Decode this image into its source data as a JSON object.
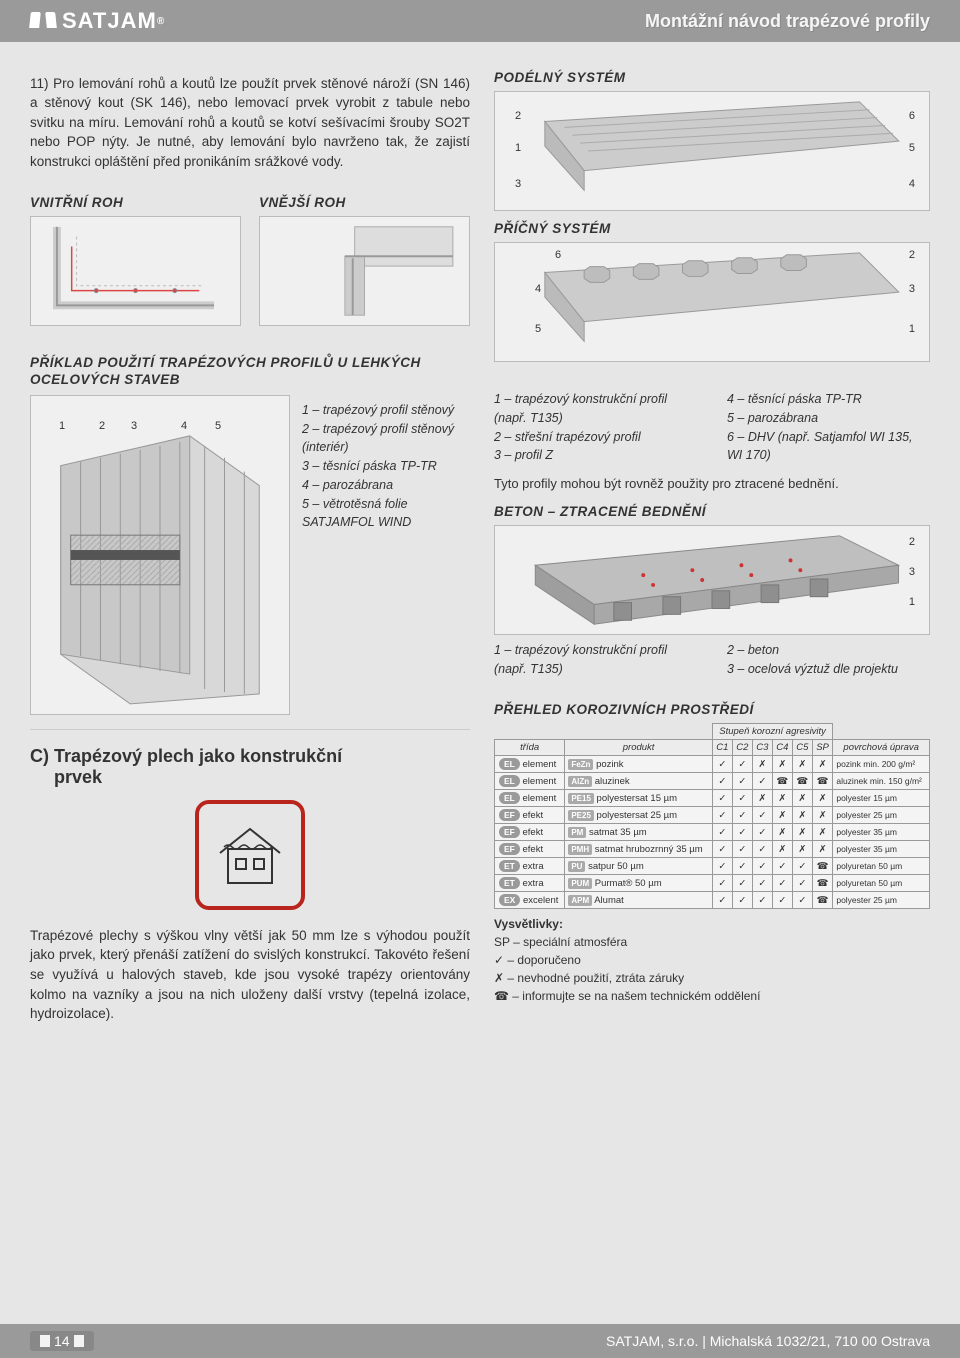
{
  "brand": "SATJAM",
  "brand_reg": "®",
  "header_title": "Montážní návod trapézové profily",
  "para_11": "11) Pro lemování rohů a koutů lze použít prvek stěnové nároží (SN 146) a stěnový kout (SK 146), nebo lemovací prvek vyrobit z tabule nebo svitku na míru. Lemování rohů a koutů se kotví sešívacími šrouby SO2T nebo POP nýty. Je nutné, aby lemování bylo navrženo tak, že zajistí konstrukci opláštění před pronikáním srážkové vody.",
  "titles": {
    "vnitrni": "VNITŘNÍ ROH",
    "vnejsi": "VNĚJŠÍ ROH",
    "podelny": "PODÉLNÝ SYSTÉM",
    "pricny": "PŘÍČNÝ SYSTÉM",
    "priklad": "PŘÍKLAD POUŽITÍ TRAPÉZOVÝCH PROFILŮ U LEHKÝCH OCELOVÝCH STAVEB",
    "beton": "BETON – ZTRACENÉ BEDNĚNÍ",
    "prehled": "PŘEHLED KOROZIVNÍCH PROSTŘEDÍ",
    "stupen": "Stupeň korozní agresivity"
  },
  "legend_left": {
    "l1": "1 – trapézový profil stěnový",
    "l2": "2 – trapézový profil stěnový (interiér)",
    "l3": "3 – těsnící páska TP-TR",
    "l4": "4 – parozábrana",
    "l5": "5 – větrotěsná folie SATJAMFOL WIND"
  },
  "legend_sys": {
    "l1": "1 – trapézový konstrukční profil (např. T135)",
    "l2": "2 – střešní trapézový profil",
    "l3": "3 – profil Z",
    "r4": "4 – těsnící páska TP-TR",
    "r5": "5 – parozábrana",
    "r6": "6 – DHV (např. Satjamfol WI 135, WI 170)"
  },
  "sys_note": "Tyto profily mohou být rovněž použity pro ztracené bednění.",
  "legend_beton": {
    "l1": "1 – trapézový konstrukční profil (např. T135)",
    "r2": "2 – beton",
    "r3": "3 – ocelová výztuž dle projektu"
  },
  "section_c": {
    "head": "C) Trapézový plech jako konstrukční",
    "head2": "prvek",
    "text": "Trapézové plechy s výškou vlny větší jak 50 mm lze s výhodou použít jako prvek, který přenáší zatížení do svislých konstrukcí. Takovéto řešení se využívá u halových staveb, kde jsou vysoké trapézy orientovány kolmo na vazníky a jsou na nich uloženy další vrstvy (tepelná izolace, hydroizolace)."
  },
  "table": {
    "h_trida": "třída",
    "h_produkt": "produkt",
    "h_c1": "C1",
    "h_c2": "C2",
    "h_c3": "C3",
    "h_c4": "C4",
    "h_c5": "C5",
    "h_sp": "SP",
    "h_uprava": "povrchová úprava",
    "rows": [
      {
        "b": "EL",
        "bl": "element",
        "pb": "FeZn",
        "pd": "pozink",
        "m": [
          "✓",
          "✓",
          "✗",
          "✗",
          "✗",
          "✗"
        ],
        "n": "pozink min. 200 g/m²"
      },
      {
        "b": "EL",
        "bl": "element",
        "pb": "AlZn",
        "pd": "aluzinek",
        "m": [
          "✓",
          "✓",
          "✓",
          "☎",
          "☎",
          "☎"
        ],
        "n": "aluzinek min. 150 g/m²"
      },
      {
        "b": "EL",
        "bl": "element",
        "pb": "PE15",
        "pd": "polyestersat 15 µm",
        "m": [
          "✓",
          "✓",
          "✗",
          "✗",
          "✗",
          "✗"
        ],
        "n": "polyester 15 µm"
      },
      {
        "b": "EF",
        "bl": "efekt",
        "pb": "PE25",
        "pd": "polyestersat 25 µm",
        "m": [
          "✓",
          "✓",
          "✓",
          "✗",
          "✗",
          "✗"
        ],
        "n": "polyester 25 µm"
      },
      {
        "b": "EF",
        "bl": "efekt",
        "pb": "PM",
        "pd": "satmat 35 µm",
        "m": [
          "✓",
          "✓",
          "✓",
          "✗",
          "✗",
          "✗"
        ],
        "n": "polyester 35 µm"
      },
      {
        "b": "EF",
        "bl": "efekt",
        "pb": "PMH",
        "pd": "satmat hrubozrnný 35 µm",
        "m": [
          "✓",
          "✓",
          "✓",
          "✗",
          "✗",
          "✗"
        ],
        "n": "polyester 35 µm"
      },
      {
        "b": "ET",
        "bl": "extra",
        "pb": "PU",
        "pd": "satpur 50 µm",
        "m": [
          "✓",
          "✓",
          "✓",
          "✓",
          "✓",
          "☎"
        ],
        "n": "polyuretan 50 µm"
      },
      {
        "b": "ET",
        "bl": "extra",
        "pb": "PUM",
        "pd": "Purmat® 50 µm",
        "m": [
          "✓",
          "✓",
          "✓",
          "✓",
          "✓",
          "☎"
        ],
        "n": "polyuretan 50 µm"
      },
      {
        "b": "EX",
        "bl": "excelent",
        "pb": "APM",
        "pd": "Alumat",
        "m": [
          "✓",
          "✓",
          "✓",
          "✓",
          "✓",
          "☎"
        ],
        "n": "polyester 25 µm"
      }
    ]
  },
  "vysv": {
    "title": "Vysvětlivky:",
    "sp": "SP – speciální atmosféra",
    "ok": "✓   – doporučeno",
    "no": "✗   – nevhodné použití, ztráta záruky",
    "tel": "☎   – informujte se na našem technickém oddělení"
  },
  "footer": {
    "page": "14",
    "company": "SATJAM, s.r.o.",
    "addr": "Michalská 1032/21, 710 00 Ostrava",
    "sep": " | "
  },
  "diag_labels": {
    "podelny": {
      "tl": "2",
      "ml": "1",
      "bl": "3",
      "tr": "6",
      "mr": "5",
      "br": "4"
    },
    "pricny": {
      "tl": "6",
      "ml": "4",
      "bl": "5",
      "tr": "2",
      "mr": "3",
      "br": "1"
    },
    "beton": {
      "tr": "2",
      "mr": "3",
      "br": "1"
    },
    "priklad": {
      "n1": "1",
      "n2": "2",
      "n3": "3",
      "n4": "4",
      "n5": "5"
    }
  },
  "colors": {
    "header_bg": "#9a9a9a",
    "accent_red": "#b9251c"
  }
}
